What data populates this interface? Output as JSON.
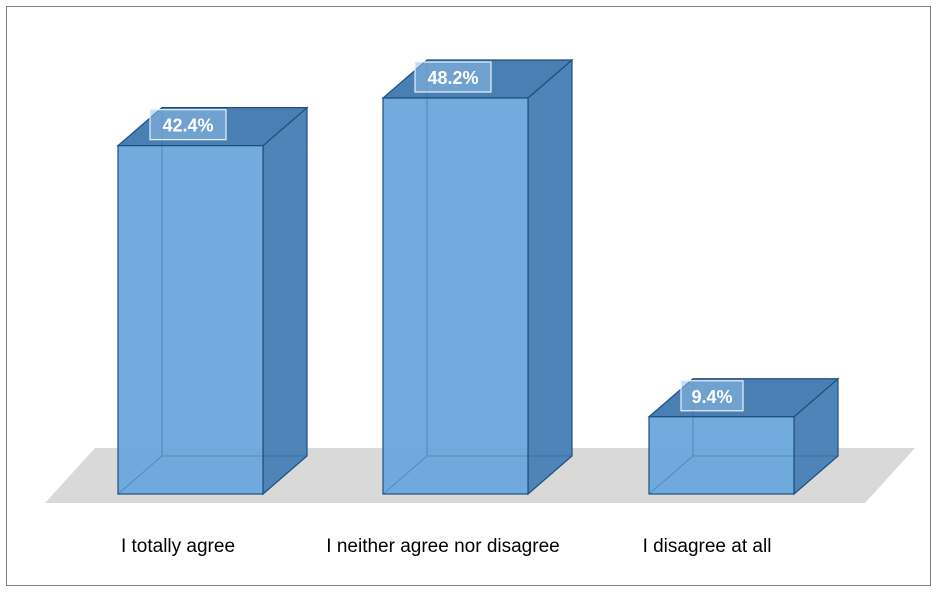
{
  "chart_data": {
    "type": "bar",
    "style": "3d-column",
    "categories": [
      "I totally agree",
      "I neither agree nor disagree",
      "I disagree at all"
    ],
    "values": [
      42.4,
      48.2,
      9.4
    ],
    "value_labels": [
      "42.4%",
      "48.2%",
      "9.4%"
    ],
    "unit": "%",
    "ylim": [
      0,
      50
    ],
    "grid": false,
    "legend": "none"
  },
  "colors": {
    "bar_front": "#6aa6dc",
    "bar_side": "#4f84b8",
    "bar_top": "#4a7fb4",
    "bar_edge": "#1f4e80",
    "floor": "#d9d9d9",
    "frame": "#7f7f7f"
  }
}
